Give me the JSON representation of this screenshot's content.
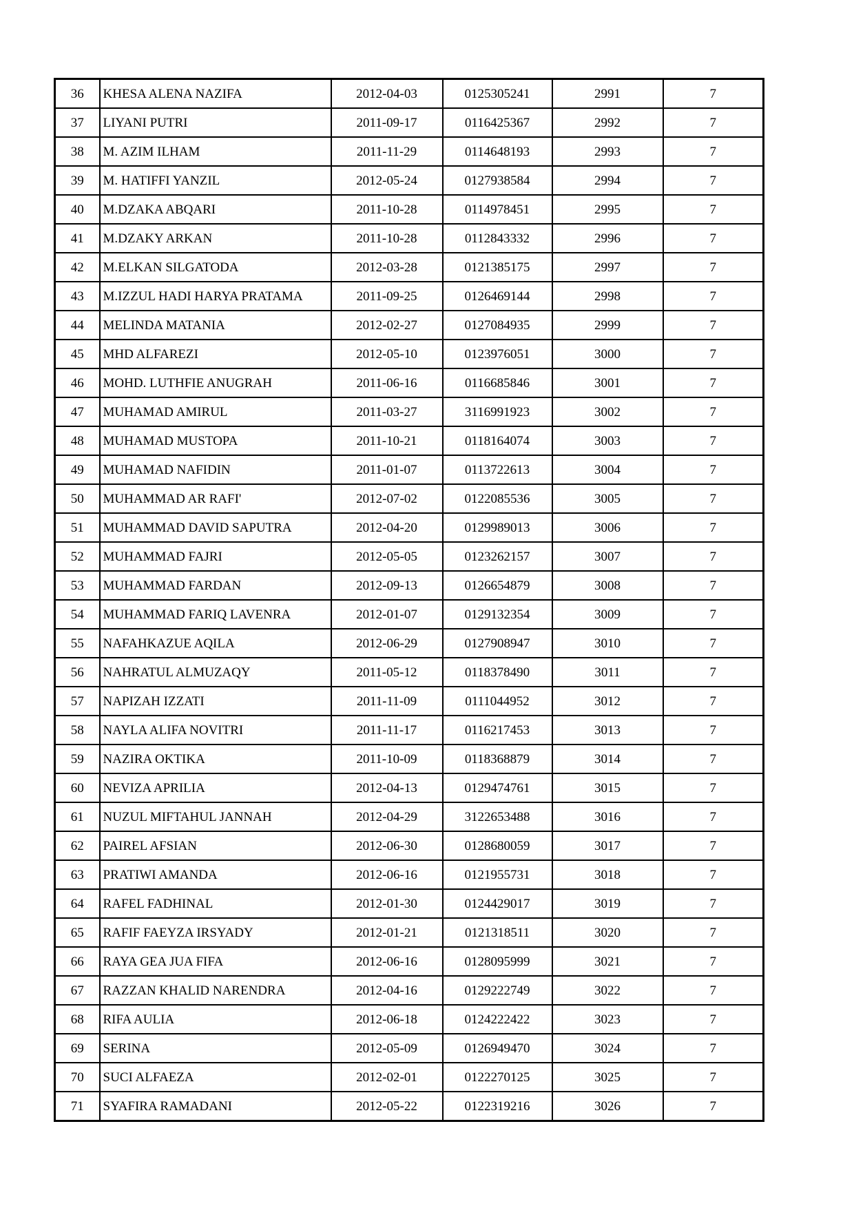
{
  "page": {
    "background_color": "#ffffff",
    "text_color": "#000000",
    "border_color": "#000000"
  },
  "table": {
    "rows": [
      [
        "36",
        "KHESA ALENA NAZIFA",
        "2012-04-03",
        "0125305241",
        "2991",
        "7"
      ],
      [
        "37",
        "LIYANI PUTRI",
        "2011-09-17",
        "0116425367",
        "2992",
        "7"
      ],
      [
        "38",
        "M. AZIM ILHAM",
        "2011-11-29",
        "0114648193",
        "2993",
        "7"
      ],
      [
        "39",
        "M. HATIFFI YANZIL",
        "2012-05-24",
        "0127938584",
        "2994",
        "7"
      ],
      [
        "40",
        "M.DZAKA ABQARI",
        "2011-10-28",
        "0114978451",
        "2995",
        "7"
      ],
      [
        "41",
        "M.DZAKY ARKAN",
        "2011-10-28",
        "0112843332",
        "2996",
        "7"
      ],
      [
        "42",
        "M.ELKAN SILGATODA",
        "2012-03-28",
        "0121385175",
        "2997",
        "7"
      ],
      [
        "43",
        "M.IZZUL HADI HARYA PRATAMA",
        "2011-09-25",
        "0126469144",
        "2998",
        "7"
      ],
      [
        "44",
        "MELINDA MATANIA",
        "2012-02-27",
        "0127084935",
        "2999",
        "7"
      ],
      [
        "45",
        "MHD ALFAREZI",
        "2012-05-10",
        "0123976051",
        "3000",
        "7"
      ],
      [
        "46",
        "MOHD. LUTHFIE ANUGRAH",
        "2011-06-16",
        "0116685846",
        "3001",
        "7"
      ],
      [
        "47",
        "MUHAMAD AMIRUL",
        "2011-03-27",
        "3116991923",
        "3002",
        "7"
      ],
      [
        "48",
        "MUHAMAD MUSTOPA",
        "2011-10-21",
        "0118164074",
        "3003",
        "7"
      ],
      [
        "49",
        "MUHAMAD NAFIDIN",
        "2011-01-07",
        "0113722613",
        "3004",
        "7"
      ],
      [
        "50",
        "MUHAMMAD AR RAFI'",
        "2012-07-02",
        "0122085536",
        "3005",
        "7"
      ],
      [
        "51",
        "MUHAMMAD DAVID SAPUTRA",
        "2012-04-20",
        "0129989013",
        "3006",
        "7"
      ],
      [
        "52",
        "MUHAMMAD FAJRI",
        "2012-05-05",
        "0123262157",
        "3007",
        "7"
      ],
      [
        "53",
        "MUHAMMAD FARDAN",
        "2012-09-13",
        "0126654879",
        "3008",
        "7"
      ],
      [
        "54",
        "MUHAMMAD FARIQ LAVENRA",
        "2012-01-07",
        "0129132354",
        "3009",
        "7"
      ],
      [
        "55",
        "NAFAHKAZUE AQILA",
        "2012-06-29",
        "0127908947",
        "3010",
        "7"
      ],
      [
        "56",
        "NAHRATUL ALMUZAQY",
        "2011-05-12",
        "0118378490",
        "3011",
        "7"
      ],
      [
        "57",
        "NAPIZAH IZZATI",
        "2011-11-09",
        "0111044952",
        "3012",
        "7"
      ],
      [
        "58",
        "NAYLA ALIFA NOVITRI",
        "2011-11-17",
        "0116217453",
        "3013",
        "7"
      ],
      [
        "59",
        "NAZIRA OKTIKA",
        "2011-10-09",
        "0118368879",
        "3014",
        "7"
      ],
      [
        "60",
        "NEVIZA APRILIA",
        "2012-04-13",
        "0129474761",
        "3015",
        "7"
      ],
      [
        "61",
        "NUZUL MIFTAHUL JANNAH",
        "2012-04-29",
        "3122653488",
        "3016",
        "7"
      ],
      [
        "62",
        "PAIREL AFSIAN",
        "2012-06-30",
        "0128680059",
        "3017",
        "7"
      ],
      [
        "63",
        "PRATIWI AMANDA",
        "2012-06-16",
        "0121955731",
        "3018",
        "7"
      ],
      [
        "64",
        "RAFEL FADHINAL",
        "2012-01-30",
        "0124429017",
        "3019",
        "7"
      ],
      [
        "65",
        "RAFIF FAEYZA IRSYADY",
        "2012-01-21",
        "0121318511",
        "3020",
        "7"
      ],
      [
        "66",
        "RAYA GEA JUA FIFA",
        "2012-06-16",
        "0128095999",
        "3021",
        "7"
      ],
      [
        "67",
        "RAZZAN KHALID NARENDRA",
        "2012-04-16",
        "0129222749",
        "3022",
        "7"
      ],
      [
        "68",
        "RIFA AULIA",
        "2012-06-18",
        "0124222422",
        "3023",
        "7"
      ],
      [
        "69",
        "SERINA",
        "2012-05-09",
        "0126949470",
        "3024",
        "7"
      ],
      [
        "70",
        "SUCI ALFAEZA",
        "2012-02-01",
        "0122270125",
        "3025",
        "7"
      ],
      [
        "71",
        "SYAFIRA RAMADANI",
        "2012-05-22",
        "0122319216",
        "3026",
        "7"
      ]
    ]
  }
}
